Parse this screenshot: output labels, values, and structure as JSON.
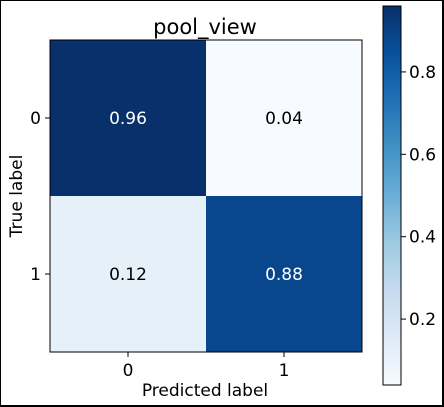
{
  "chart_data": {
    "type": "heatmap",
    "title": "pool_view",
    "xlabel": "Predicted label",
    "ylabel": "True label",
    "x_categories": [
      "0",
      "1"
    ],
    "y_categories": [
      "0",
      "1"
    ],
    "values": [
      [
        0.96,
        0.04
      ],
      [
        0.12,
        0.88
      ]
    ],
    "value_labels": [
      [
        "0.96",
        "0.04"
      ],
      [
        "0.12",
        "0.88"
      ]
    ],
    "colormap": "Blues",
    "color_range": [
      0.04,
      0.96
    ],
    "colorbar": {
      "ticks": [
        0.2,
        0.4,
        0.6,
        0.8
      ],
      "tick_labels": [
        "0.2",
        "0.4",
        "0.6",
        "0.8"
      ]
    },
    "grid": false
  }
}
